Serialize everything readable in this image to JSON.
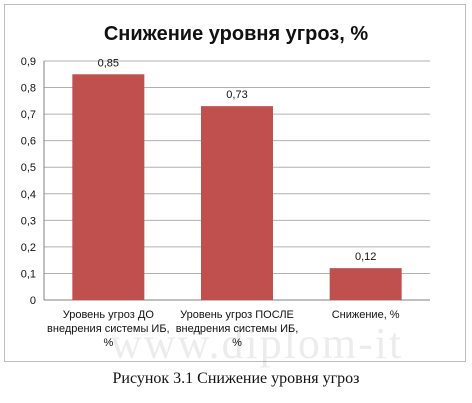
{
  "chart_data": {
    "type": "bar",
    "title": "Снижение уровня угроз, %",
    "categories": [
      [
        "Уровень угроз ДО",
        "внедрения системы ИБ,",
        "%"
      ],
      [
        "Уровень угроз ПОСЛЕ",
        "внедрения системы ИБ,",
        "%"
      ],
      [
        "Снижение, %"
      ]
    ],
    "values": [
      0.85,
      0.73,
      0.12
    ],
    "data_labels": [
      "0,85",
      "0,73",
      "0,12"
    ],
    "y_ticks": [
      "0",
      "0,1",
      "0,2",
      "0,3",
      "0,4",
      "0,5",
      "0,6",
      "0,7",
      "0,8",
      "0,9"
    ],
    "ylim": [
      0,
      0.9
    ],
    "grid": true,
    "legend": "none",
    "bar_color": "#c0504d"
  },
  "caption": "Рисунок 3.1 Снижение уровня угроз",
  "watermark_text": "www.diplom-it"
}
